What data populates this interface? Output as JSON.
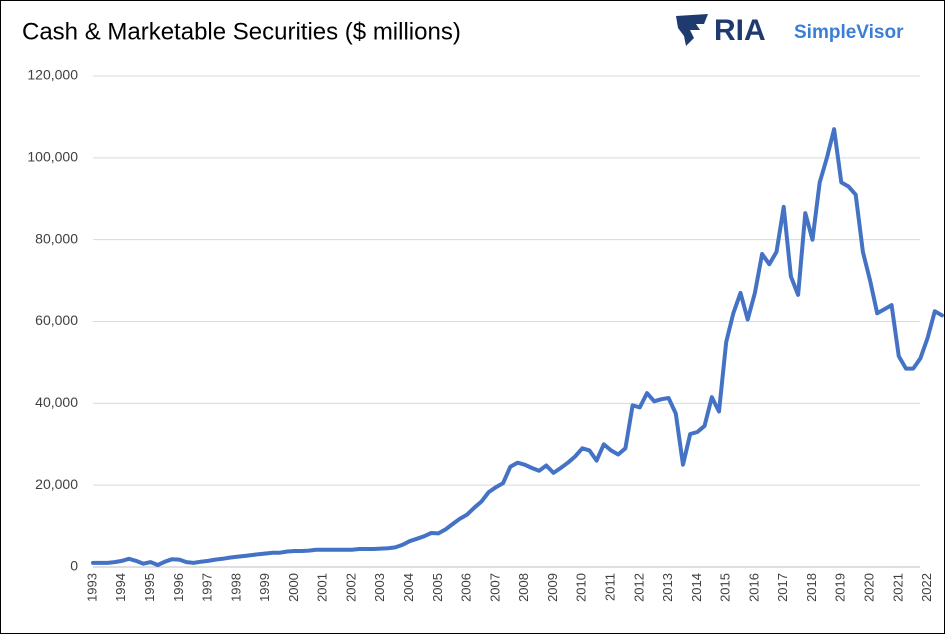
{
  "chart_data": {
    "type": "line",
    "title": "Cash & Marketable Securities ($ millions)",
    "logo": {
      "brand": "RIA",
      "product": "SimpleVisor"
    },
    "categories": [
      "1993",
      null,
      null,
      null,
      "1994",
      null,
      null,
      null,
      "1995",
      null,
      null,
      null,
      "1996",
      null,
      null,
      null,
      "1997",
      null,
      null,
      null,
      "1998",
      null,
      null,
      null,
      "1999",
      null,
      null,
      null,
      "2000",
      null,
      null,
      null,
      "2001",
      null,
      null,
      null,
      "2002",
      null,
      null,
      null,
      "2003",
      null,
      null,
      null,
      "2004",
      null,
      null,
      null,
      "2005",
      null,
      null,
      null,
      "2006",
      null,
      null,
      null,
      "2007",
      null,
      null,
      null,
      "2008",
      null,
      null,
      null,
      "2009",
      null,
      null,
      null,
      "2010",
      null,
      null,
      null,
      "2011",
      null,
      null,
      null,
      "2012",
      null,
      null,
      null,
      "2013",
      null,
      null,
      null,
      "2014",
      null,
      null,
      null,
      "2015",
      null,
      null,
      null,
      "2016",
      null,
      null,
      null,
      "2017",
      null,
      null,
      null,
      "2018",
      null,
      null,
      null,
      "2019",
      null,
      null,
      null,
      "2020",
      null,
      null,
      null,
      "2021",
      null,
      null,
      null,
      "2022",
      null,
      null
    ],
    "values": [
      1000,
      1000,
      1000,
      1200,
      1500,
      2000,
      1500,
      800,
      1200,
      500,
      1300,
      1900,
      1800,
      1200,
      1000,
      1300,
      1500,
      1800,
      2000,
      2300,
      2500,
      2700,
      2900,
      3100,
      3300,
      3500,
      3500,
      3800,
      3900,
      3900,
      4000,
      4200,
      4200,
      4200,
      4200,
      4200,
      4200,
      4400,
      4400,
      4400,
      4500,
      4600,
      4800,
      5400,
      6300,
      6900,
      7500,
      8300,
      8200,
      9200,
      10500,
      11800,
      12800,
      14500,
      16000,
      18300,
      19500,
      20500,
      24500,
      25500,
      25000,
      24200,
      23500,
      24800,
      23000,
      24200,
      25500,
      27000,
      29000,
      28500,
      26000,
      30000,
      28500,
      27500,
      29000,
      39500,
      39000,
      42500,
      40500,
      41000,
      41300,
      37500,
      25000,
      32500,
      33000,
      34500,
      41500,
      38000,
      55000,
      62000,
      67000,
      60500,
      67000,
      76500,
      74000,
      77000,
      88000,
      71000,
      66500,
      86500,
      80000,
      94000,
      100000,
      107000,
      94000,
      93000,
      91000,
      77000,
      70000,
      62000,
      63000,
      64000,
      51500,
      48500,
      48500,
      51000,
      56000,
      62500,
      61500
    ],
    "color": "#4472c4",
    "ylim": [
      0,
      120000
    ],
    "yticks": [
      0,
      {
        "value": 20000,
        "label": "20,000"
      },
      {
        "value": 40000,
        "label": "40,000"
      },
      {
        "value": 60000,
        "label": "60,000"
      },
      {
        "value": 80000,
        "label": "80,000"
      },
      {
        "value": 100000,
        "label": "100,000"
      },
      {
        "value": 120000,
        "label": "120,000"
      }
    ],
    "grid": true
  }
}
